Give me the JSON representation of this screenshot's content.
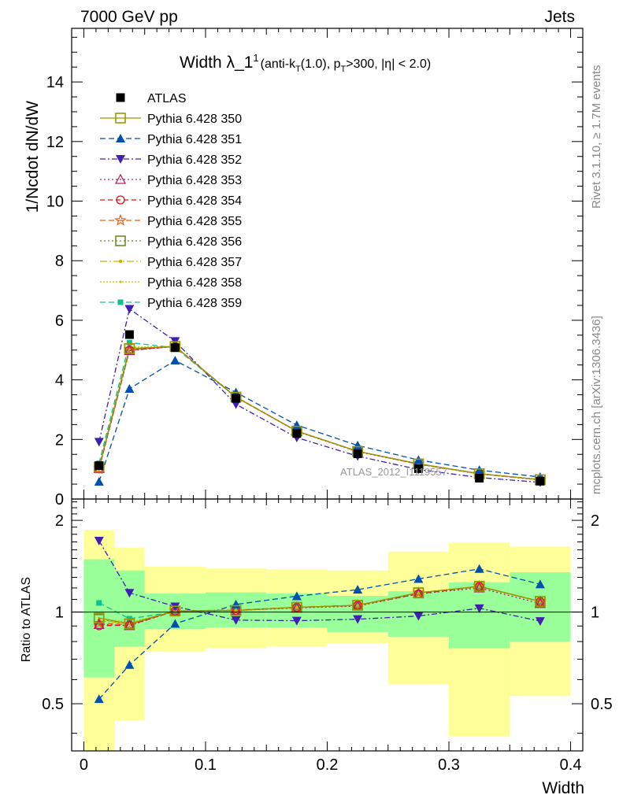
{
  "header": {
    "energy_label": "7000 GeV pp",
    "category_label": "Jets",
    "title_main": "Width λ_1",
    "title_sup": "1",
    "title_cond_1": "(anti-k",
    "title_cond_sub": "T",
    "title_cond_2": "(1.0), p",
    "title_cond_3": ">300, |η| < 2.0)",
    "ylabel_top": "1/Ncdot dN/dW",
    "ylabel_bottom": "Ratio to ATLAS",
    "xlabel": "Width",
    "watermark": "ATLAS_2012_I1119557",
    "side_rivet": "Rivet 3.1.10, ≥ 1.7M events",
    "side_mcplots": "mcplots.cern.ch [arXiv:1306.3436]"
  },
  "legend": {
    "data_label": "ATLAS",
    "mc_labels": [
      "Pythia 6.428 350",
      "Pythia 6.428 351",
      "Pythia 6.428 352",
      "Pythia 6.428 353",
      "Pythia 6.428 354",
      "Pythia 6.428 355",
      "Pythia 6.428 356",
      "Pythia 6.428 357",
      "Pythia 6.428 358",
      "Pythia 6.428 359"
    ]
  },
  "chart_data": {
    "type": "line",
    "x_edges": [
      0.0,
      0.025,
      0.05,
      0.1,
      0.15,
      0.2,
      0.25,
      0.3,
      0.35,
      0.4
    ],
    "x": [
      0.0125,
      0.0375,
      0.075,
      0.125,
      0.175,
      0.225,
      0.275,
      0.325,
      0.375
    ],
    "xlim": [
      -0.01,
      0.41
    ],
    "xticks": [
      0,
      0.1,
      0.2,
      0.3,
      0.4
    ],
    "xtick_labels": [
      "0",
      "0.1",
      "0.2",
      "0.3",
      "0.4"
    ],
    "main": {
      "ylim": [
        0,
        15.8
      ],
      "yticks": [
        0,
        2,
        4,
        6,
        8,
        10,
        12,
        14
      ],
      "ytick_labels": [
        "0",
        "2",
        "4",
        "6",
        "8",
        "10",
        "12",
        "14"
      ]
    },
    "ratio": {
      "ylim": [
        0.35,
        2.35
      ],
      "yticks": [
        0.5,
        1,
        2
      ],
      "ytick_labels": [
        "0.5",
        "1",
        "2"
      ],
      "band_inner": [
        [
          0.61,
          1.49
        ],
        [
          0.77,
          1.37
        ],
        [
          0.88,
          1.15
        ],
        [
          0.89,
          1.16
        ],
        [
          0.89,
          1.15
        ],
        [
          0.86,
          1.13
        ],
        [
          0.83,
          1.17
        ],
        [
          0.76,
          1.25
        ],
        [
          0.8,
          1.35
        ]
      ],
      "band_outer": [
        [
          0.35,
          1.86
        ],
        [
          0.44,
          1.63
        ],
        [
          0.74,
          1.41
        ],
        [
          0.76,
          1.39
        ],
        [
          0.77,
          1.38
        ],
        [
          0.79,
          1.37
        ],
        [
          0.58,
          1.58
        ],
        [
          0.39,
          1.69
        ],
        [
          0.53,
          1.64
        ]
      ]
    },
    "data": {
      "name": "ATLAS",
      "values": [
        1.12,
        5.52,
        5.08,
        3.38,
        2.2,
        1.52,
        1.02,
        0.7,
        0.6
      ]
    },
    "series": [
      {
        "name": "Pythia 6.428 350",
        "color": "#999900",
        "dash": "",
        "marker": "square-open",
        "values": [
          1.07,
          5.05,
          5.12,
          3.42,
          2.28,
          1.6,
          1.18,
          0.85,
          0.65
        ]
      },
      {
        "name": "Pythia 6.428 351",
        "color": "#0050b0",
        "dash": "7,4",
        "marker": "triangle-up",
        "values": [
          0.58,
          3.7,
          4.65,
          3.58,
          2.48,
          1.8,
          1.31,
          0.97,
          0.74
        ]
      },
      {
        "name": "Pythia 6.428 352",
        "color": "#4020b0",
        "dash": "7,3,2,3",
        "marker": "triangle-down",
        "values": [
          1.92,
          6.38,
          5.3,
          3.18,
          2.06,
          1.44,
          0.99,
          0.72,
          0.56
        ]
      },
      {
        "name": "Pythia 6.428 353",
        "color": "#b0206a",
        "dash": "2,3",
        "marker": "triangle-up-open",
        "values": [
          1.02,
          4.98,
          5.12,
          3.42,
          2.27,
          1.59,
          1.17,
          0.84,
          0.64
        ]
      },
      {
        "name": "Pythia 6.428 354",
        "color": "#e01010",
        "dash": "6,4",
        "marker": "circle-open",
        "values": [
          1.01,
          5.0,
          5.12,
          3.42,
          2.28,
          1.6,
          1.17,
          0.85,
          0.65
        ]
      },
      {
        "name": "Pythia 6.428 355",
        "color": "#e86010",
        "dash": "7,4",
        "marker": "star-open",
        "values": [
          1.03,
          5.02,
          5.12,
          3.43,
          2.28,
          1.6,
          1.18,
          0.85,
          0.65
        ]
      },
      {
        "name": "Pythia 6.428 356",
        "color": "#6b8e23",
        "dash": "2,3",
        "marker": "square-open",
        "values": [
          1.06,
          5.05,
          5.12,
          3.42,
          2.28,
          1.6,
          1.18,
          0.85,
          0.65
        ]
      },
      {
        "name": "Pythia 6.428 357",
        "color": "#c8b400",
        "dash": "9,3,2,3",
        "marker": "dot",
        "values": [
          1.05,
          5.05,
          5.13,
          3.43,
          2.28,
          1.6,
          1.18,
          0.85,
          0.65
        ]
      },
      {
        "name": "Pythia 6.428 358",
        "color": "#a8d000",
        "dash": "2,2",
        "marker": "dot-small",
        "values": [
          1.07,
          5.1,
          5.12,
          3.42,
          2.28,
          1.6,
          1.18,
          0.85,
          0.65
        ]
      },
      {
        "name": "Pythia 6.428 359",
        "color": "#10c090",
        "dash": "7,4",
        "marker": "square-small",
        "values": [
          1.2,
          5.25,
          5.08,
          3.42,
          2.28,
          1.6,
          1.18,
          0.85,
          0.65
        ]
      }
    ]
  }
}
